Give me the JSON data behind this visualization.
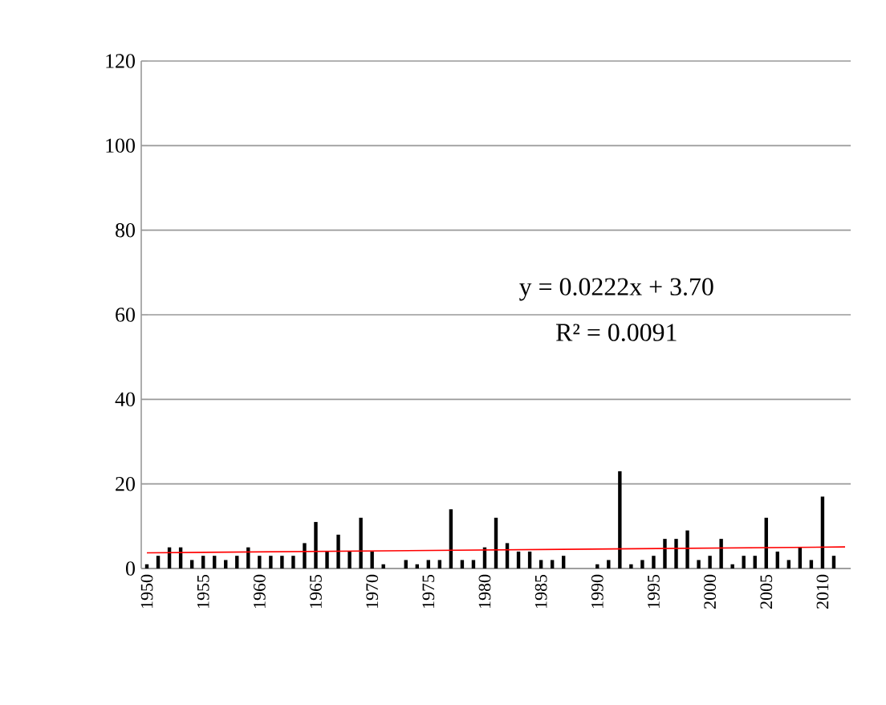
{
  "chart_data": {
    "type": "bar",
    "x": [
      1950,
      1951,
      1952,
      1953,
      1954,
      1955,
      1956,
      1957,
      1958,
      1959,
      1960,
      1961,
      1962,
      1963,
      1964,
      1965,
      1966,
      1967,
      1968,
      1969,
      1970,
      1971,
      1972,
      1973,
      1974,
      1975,
      1976,
      1977,
      1978,
      1979,
      1980,
      1981,
      1982,
      1983,
      1984,
      1985,
      1986,
      1987,
      1988,
      1989,
      1990,
      1991,
      1992,
      1993,
      1994,
      1995,
      1996,
      1997,
      1998,
      1999,
      2000,
      2001,
      2002,
      2003,
      2004,
      2005,
      2006,
      2007,
      2008,
      2009,
      2010,
      2011,
      2012
    ],
    "series": [
      {
        "color": "#000000",
        "values": [
          1,
          3,
          5,
          5,
          2,
          3,
          3,
          2,
          3,
          5,
          3,
          3,
          3,
          3,
          6,
          11,
          4,
          8,
          4,
          12,
          4,
          1,
          0,
          2,
          1,
          2,
          2,
          14,
          2,
          2,
          5,
          12,
          6,
          4,
          4,
          2,
          2,
          3,
          0,
          0,
          1,
          2,
          23,
          1,
          2,
          3,
          7,
          7,
          9,
          2,
          3,
          7,
          1,
          3,
          3,
          12,
          4,
          2,
          5,
          2,
          17,
          3,
          0
        ]
      },
      {
        "type": "line",
        "color": "#ff0000",
        "x": [
          1950,
          2012
        ],
        "values": [
          3.7,
          5.1
        ],
        "marker": "none"
      }
    ],
    "xlim": [
      1949.5,
      2012.5
    ],
    "xticks": [
      1950,
      1955,
      1960,
      1965,
      1970,
      1975,
      1980,
      1985,
      1990,
      1995,
      2000,
      2005,
      2010
    ],
    "ylim": [
      0,
      120
    ],
    "yticks": [
      0,
      20,
      40,
      60,
      80,
      100,
      120
    ],
    "grid": "y",
    "annotations": [
      "y = 0.0222x + 3.70",
      "R² = 0.0091"
    ]
  }
}
